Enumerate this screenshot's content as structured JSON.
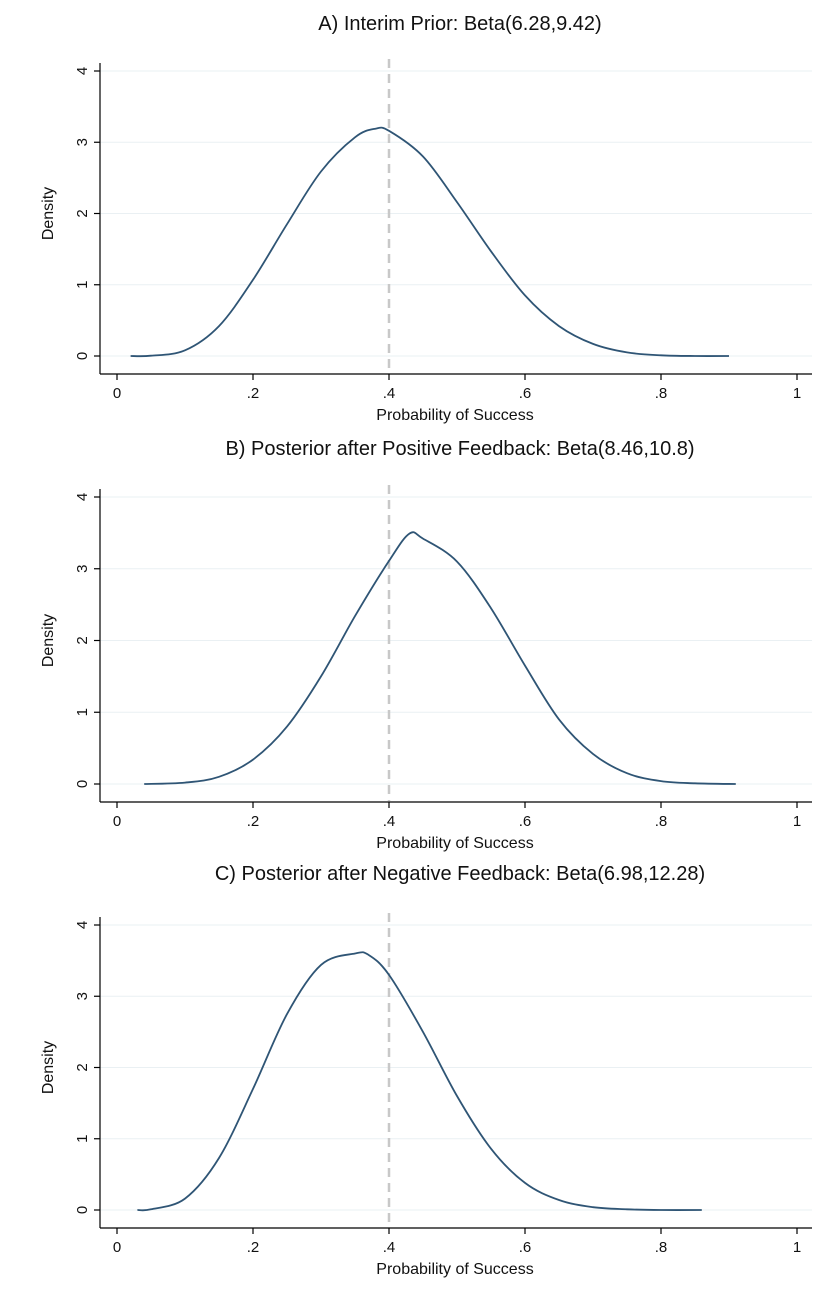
{
  "chart_data": [
    {
      "type": "line",
      "title": "A) Interim Prior: Beta(6.28,9.42)",
      "xlabel": "Probability of Success",
      "ylabel": "Density",
      "xlim": [
        0,
        1
      ],
      "ylim": [
        0,
        4
      ],
      "x_ticks": [
        "0",
        ".2",
        ".4",
        ".6",
        ".8",
        "1"
      ],
      "y_ticks": [
        "0",
        "1",
        "2",
        "3",
        "4"
      ],
      "grid": true,
      "reference_line_x": 0.4,
      "series": [
        {
          "x": [
            0.02,
            0.05,
            0.1,
            0.15,
            0.2,
            0.25,
            0.3,
            0.35,
            0.38,
            0.4,
            0.45,
            0.5,
            0.55,
            0.6,
            0.65,
            0.7,
            0.75,
            0.8,
            0.85,
            0.9
          ],
          "y": [
            0.0,
            0.004,
            0.08,
            0.42,
            1.07,
            1.85,
            2.59,
            3.07,
            3.19,
            3.16,
            2.8,
            2.16,
            1.47,
            0.85,
            0.42,
            0.17,
            0.05,
            0.01,
            0.0,
            0.0
          ]
        }
      ]
    },
    {
      "type": "line",
      "title": "B) Posterior after Positive Feedback: Beta(8.46,10.8)",
      "xlabel": "Probability of Success",
      "ylabel": "Density",
      "xlim": [
        0,
        1
      ],
      "ylim": [
        0,
        4
      ],
      "x_ticks": [
        "0",
        ".2",
        ".4",
        ".6",
        ".8",
        "1"
      ],
      "y_ticks": [
        "0",
        "1",
        "2",
        "3",
        "4"
      ],
      "grid": true,
      "reference_line_x": 0.4,
      "series": [
        {
          "x": [
            0.04,
            0.1,
            0.15,
            0.2,
            0.25,
            0.3,
            0.35,
            0.4,
            0.43,
            0.45,
            0.5,
            0.55,
            0.6,
            0.65,
            0.7,
            0.75,
            0.8,
            0.85,
            0.91
          ],
          "y": [
            0.0,
            0.02,
            0.1,
            0.34,
            0.8,
            1.5,
            2.34,
            3.11,
            3.49,
            3.42,
            3.1,
            2.45,
            1.65,
            0.9,
            0.42,
            0.15,
            0.04,
            0.01,
            0.0
          ]
        }
      ]
    },
    {
      "type": "line",
      "title": "C) Posterior after Negative Feedback: Beta(6.98,12.28)",
      "xlabel": "Probability of Success",
      "ylabel": "Density",
      "xlim": [
        0,
        1
      ],
      "ylim": [
        0,
        4
      ],
      "x_ticks": [
        "0",
        ".2",
        ".4",
        ".6",
        ".8",
        "1"
      ],
      "y_ticks": [
        "0",
        "1",
        "2",
        "3",
        "4"
      ],
      "grid": true,
      "reference_line_x": 0.4,
      "series": [
        {
          "x": [
            0.03,
            0.05,
            0.1,
            0.15,
            0.2,
            0.25,
            0.3,
            0.35,
            0.37,
            0.4,
            0.45,
            0.5,
            0.55,
            0.6,
            0.65,
            0.7,
            0.75,
            0.8,
            0.86
          ],
          "y": [
            0.0,
            0.01,
            0.16,
            0.73,
            1.7,
            2.75,
            3.44,
            3.6,
            3.58,
            3.3,
            2.5,
            1.6,
            0.86,
            0.38,
            0.14,
            0.04,
            0.01,
            0.0,
            0.0
          ]
        }
      ]
    }
  ],
  "colors": {
    "curve": "#2f5575",
    "reference_line": "#c8c8c8",
    "grid": "#eaf0f3"
  }
}
